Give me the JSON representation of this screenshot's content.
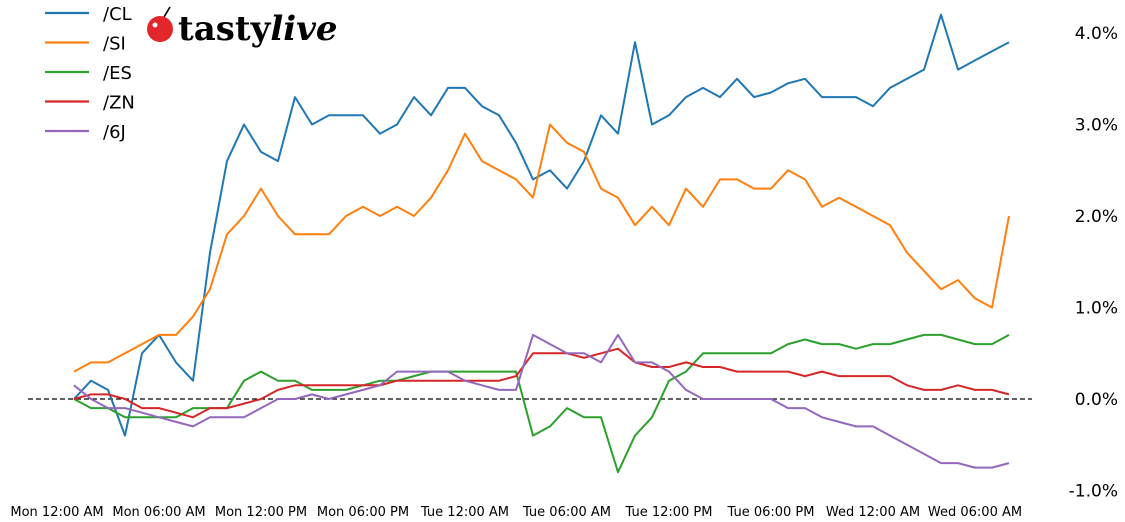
{
  "logo": {
    "text_main": "tasty",
    "text_italic": "live",
    "cherry_color": "#e3262b"
  },
  "chart_data": {
    "type": "line",
    "title": "",
    "xlabel": "",
    "ylabel": "",
    "ylim": [
      -1.0,
      4.0
    ],
    "y_unit": "%",
    "zero_line": "dashed",
    "grid": false,
    "legend_position": "top-left",
    "y_ticks": [
      "4.0%",
      "3.0%",
      "2.0%",
      "1.0%",
      "0.0%",
      "-1.0%"
    ],
    "y_tick_values": [
      4,
      3,
      2,
      1,
      0,
      -1
    ],
    "x_ticks": [
      "Mon 12:00 AM",
      "Mon 06:00 AM",
      "Mon 12:00 PM",
      "Mon 06:00 PM",
      "Tue 12:00 AM",
      "Tue 06:00 AM",
      "Tue 12:00 PM",
      "Tue 06:00 PM",
      "Wed 12:00 AM",
      "Wed 06:00 AM"
    ],
    "x": [
      "Mon 01:00 AM",
      "Mon 02:00 AM",
      "Mon 03:00 AM",
      "Mon 04:00 AM",
      "Mon 05:00 AM",
      "Mon 06:00 AM",
      "Mon 07:00 AM",
      "Mon 08:00 AM",
      "Mon 09:00 AM",
      "Mon 10:00 AM",
      "Mon 11:00 AM",
      "Mon 12:00 PM",
      "Mon 01:00 PM",
      "Mon 02:00 PM",
      "Mon 03:00 PM",
      "Mon 04:00 PM",
      "Mon 05:00 PM",
      "Mon 06:00 PM",
      "Mon 07:00 PM",
      "Mon 08:00 PM",
      "Mon 09:00 PM",
      "Mon 10:00 PM",
      "Mon 11:00 PM",
      "Tue 12:00 AM",
      "Tue 01:00 AM",
      "Tue 02:00 AM",
      "Tue 03:00 AM",
      "Tue 04:00 AM",
      "Tue 05:00 AM",
      "Tue 06:00 AM",
      "Tue 07:00 AM",
      "Tue 08:00 AM",
      "Tue 09:00 AM",
      "Tue 10:00 AM",
      "Tue 11:00 AM",
      "Tue 12:00 PM",
      "Tue 01:00 PM",
      "Tue 02:00 PM",
      "Tue 03:00 PM",
      "Tue 04:00 PM",
      "Tue 05:00 PM",
      "Tue 06:00 PM",
      "Tue 07:00 PM",
      "Tue 08:00 PM",
      "Tue 09:00 PM",
      "Tue 10:00 PM",
      "Tue 11:00 PM",
      "Wed 12:00 AM",
      "Wed 01:00 AM",
      "Wed 02:00 AM",
      "Wed 03:00 AM",
      "Wed 04:00 AM",
      "Wed 05:00 AM",
      "Wed 06:00 AM",
      "Wed 07:00 AM",
      "Wed 08:00 AM"
    ],
    "series": [
      {
        "name": "/CL",
        "color": "#1f77b4",
        "values": [
          0.0,
          0.2,
          0.1,
          -0.4,
          0.5,
          0.7,
          0.4,
          0.2,
          1.6,
          2.6,
          3.0,
          2.7,
          2.6,
          3.3,
          3.0,
          3.1,
          3.1,
          3.1,
          2.9,
          3.0,
          3.3,
          3.1,
          3.4,
          3.4,
          3.2,
          3.1,
          2.8,
          2.4,
          2.5,
          2.3,
          2.6,
          3.1,
          2.9,
          3.9,
          3.0,
          3.1,
          3.3,
          3.4,
          3.3,
          3.5,
          3.3,
          3.35,
          3.45,
          3.5,
          3.3,
          3.3,
          3.3,
          3.2,
          3.4,
          3.5,
          3.6,
          4.2,
          3.6,
          3.7,
          3.8,
          3.9
        ]
      },
      {
        "name": "/SI",
        "color": "#ff7f0e",
        "values": [
          0.3,
          0.4,
          0.4,
          0.5,
          0.6,
          0.7,
          0.7,
          0.9,
          1.2,
          1.8,
          2.0,
          2.3,
          2.0,
          1.8,
          1.8,
          1.8,
          2.0,
          2.1,
          2.0,
          2.1,
          2.0,
          2.2,
          2.5,
          2.9,
          2.6,
          2.5,
          2.4,
          2.2,
          3.0,
          2.8,
          2.7,
          2.3,
          2.2,
          1.9,
          2.1,
          1.9,
          2.3,
          2.1,
          2.4,
          2.4,
          2.3,
          2.3,
          2.5,
          2.4,
          2.1,
          2.2,
          2.1,
          2.0,
          1.9,
          1.6,
          1.4,
          1.2,
          1.3,
          1.1,
          1.0,
          2.0
        ]
      },
      {
        "name": "/ES",
        "color": "#2ca02c",
        "values": [
          0.0,
          -0.1,
          -0.1,
          -0.2,
          -0.2,
          -0.2,
          -0.2,
          -0.1,
          -0.1,
          -0.1,
          0.2,
          0.3,
          0.2,
          0.2,
          0.1,
          0.1,
          0.1,
          0.15,
          0.2,
          0.2,
          0.25,
          0.3,
          0.3,
          0.3,
          0.3,
          0.3,
          0.3,
          -0.4,
          -0.3,
          -0.1,
          -0.2,
          -0.2,
          -0.8,
          -0.4,
          -0.2,
          0.2,
          0.3,
          0.5,
          0.5,
          0.5,
          0.5,
          0.5,
          0.6,
          0.65,
          0.6,
          0.6,
          0.55,
          0.6,
          0.6,
          0.65,
          0.7,
          0.7,
          0.65,
          0.6,
          0.6,
          0.7
        ]
      },
      {
        "name": "/ZN",
        "color": "#d62728",
        "values": [
          0.0,
          0.05,
          0.05,
          0.0,
          -0.1,
          -0.1,
          -0.15,
          -0.2,
          -0.1,
          -0.1,
          -0.05,
          0.0,
          0.1,
          0.15,
          0.15,
          0.15,
          0.15,
          0.15,
          0.15,
          0.2,
          0.2,
          0.2,
          0.2,
          0.2,
          0.2,
          0.2,
          0.25,
          0.5,
          0.5,
          0.5,
          0.45,
          0.5,
          0.55,
          0.4,
          0.35,
          0.35,
          0.4,
          0.35,
          0.35,
          0.3,
          0.3,
          0.3,
          0.3,
          0.25,
          0.3,
          0.25,
          0.25,
          0.25,
          0.25,
          0.15,
          0.1,
          0.1,
          0.15,
          0.1,
          0.1,
          0.05
        ]
      },
      {
        "name": "/6J",
        "color": "#9467bd",
        "values": [
          0.15,
          0.0,
          -0.1,
          -0.1,
          -0.15,
          -0.2,
          -0.25,
          -0.3,
          -0.2,
          -0.2,
          -0.2,
          -0.1,
          0.0,
          0.0,
          0.05,
          0.0,
          0.05,
          0.1,
          0.15,
          0.3,
          0.3,
          0.3,
          0.3,
          0.2,
          0.15,
          0.1,
          0.1,
          0.7,
          0.6,
          0.5,
          0.5,
          0.4,
          0.7,
          0.4,
          0.4,
          0.3,
          0.1,
          0.0,
          0.0,
          0.0,
          0.0,
          0.0,
          -0.1,
          -0.1,
          -0.2,
          -0.25,
          -0.3,
          -0.3,
          -0.4,
          -0.5,
          -0.6,
          -0.7,
          -0.7,
          -0.75,
          -0.75,
          -0.7
        ]
      }
    ]
  }
}
